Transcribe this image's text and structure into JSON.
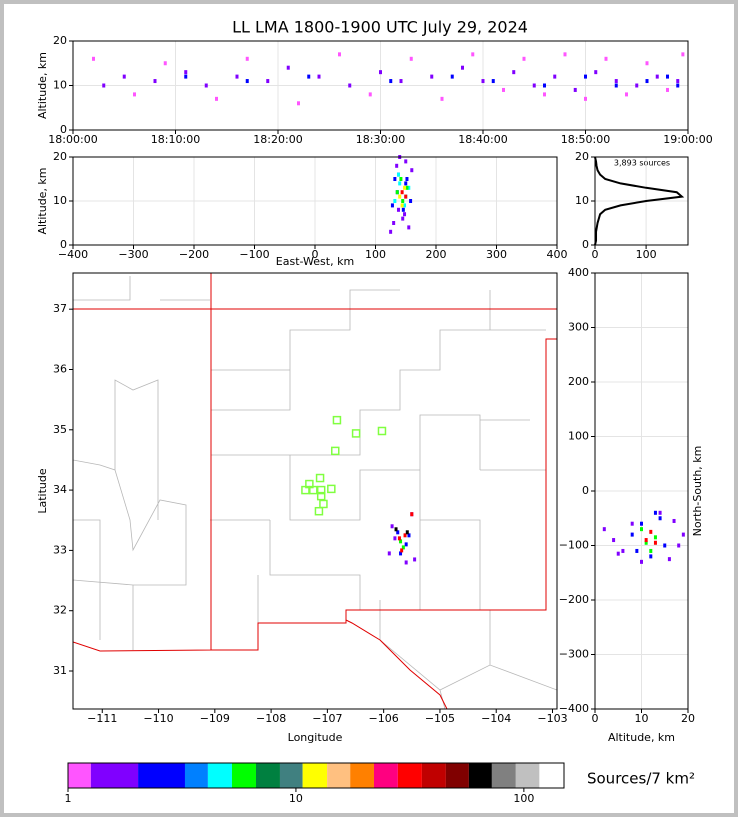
{
  "chart_data": [
    {
      "type": "scatter",
      "title": "LL LMA 1800-1900 UTC July 29, 2024",
      "ylabel": "Altitude, km",
      "xlim": [
        0,
        60
      ],
      "xticks": [
        {
          "value": 0,
          "label": "18:00:00"
        },
        {
          "value": 10,
          "label": "18:10:00"
        },
        {
          "value": 20,
          "label": "18:20:00"
        },
        {
          "value": 30,
          "label": "18:30:00"
        },
        {
          "value": 40,
          "label": "18:40:00"
        },
        {
          "value": 50,
          "label": "18:50:00"
        },
        {
          "value": 60,
          "label": "19:00:00"
        }
      ],
      "ylim": [
        0,
        20
      ],
      "yticks": [
        0,
        10,
        20
      ],
      "grid": true,
      "series": [
        {
          "color": "#8000ff",
          "x": [
            3,
            5,
            8,
            11,
            13,
            16,
            19,
            21,
            24,
            27,
            30,
            32,
            35,
            38,
            40,
            43,
            45,
            47,
            49,
            51,
            53,
            55,
            57,
            59
          ],
          "y": [
            10,
            12,
            11,
            13,
            10,
            12,
            11,
            14,
            12,
            10,
            13,
            11,
            12,
            14,
            11,
            13,
            10,
            12,
            9,
            13,
            11,
            10,
            12,
            11
          ]
        },
        {
          "color": "#ff55ff",
          "x": [
            2,
            6,
            9,
            14,
            17,
            22,
            26,
            29,
            33,
            36,
            39,
            42,
            44,
            46,
            48,
            50,
            52,
            54,
            56,
            58,
            59.5
          ],
          "y": [
            16,
            8,
            15,
            7,
            16,
            6,
            17,
            8,
            16,
            7,
            17,
            9,
            16,
            8,
            17,
            7,
            16,
            8,
            15,
            9,
            17
          ]
        },
        {
          "color": "#0000ff",
          "x": [
            11,
            17,
            23,
            31,
            37,
            41,
            46,
            50,
            53,
            56,
            58,
            59
          ],
          "y": [
            12,
            11,
            12,
            11,
            12,
            11,
            10,
            12,
            10,
            11,
            12,
            10
          ]
        }
      ]
    },
    {
      "type": "scatter",
      "xlabel": "East-West, km",
      "ylabel": "Altitude, km",
      "xlim": [
        -400,
        400
      ],
      "xticks": [
        {
          "value": -400,
          "label": "−400"
        },
        {
          "value": -300,
          "label": "−300"
        },
        {
          "value": -200,
          "label": "−200"
        },
        {
          "value": -100,
          "label": "−100"
        },
        0,
        100,
        200,
        300,
        400
      ],
      "ylim": [
        0,
        20
      ],
      "yticks": [
        0,
        10,
        20
      ],
      "grid": true,
      "series": [
        {
          "color": "#8000ff",
          "x": [
            125,
            130,
            135,
            140,
            145,
            150,
            155,
            160,
            138,
            148
          ],
          "y": [
            3,
            5,
            18,
            20,
            6,
            19,
            4,
            17,
            8,
            7
          ]
        },
        {
          "color": "#0000ff",
          "x": [
            128,
            132,
            138,
            146,
            152,
            158,
            136,
            150
          ],
          "y": [
            9,
            15,
            16,
            8,
            15,
            10,
            12,
            14
          ]
        },
        {
          "color": "#00ffff",
          "x": [
            132,
            140,
            148,
            155,
            138,
            150
          ],
          "y": [
            10,
            14,
            9,
            13,
            16,
            11
          ]
        },
        {
          "color": "#00ff00",
          "x": [
            136,
            145,
            152,
            142
          ],
          "y": [
            12,
            10,
            13,
            15
          ]
        },
        {
          "color": "#ffff00",
          "x": [
            140,
            148,
            144
          ],
          "y": [
            11,
            13,
            9
          ]
        },
        {
          "color": "#ff0000",
          "x": [
            144,
            150
          ],
          "y": [
            12,
            11
          ]
        }
      ]
    },
    {
      "type": "line",
      "annotation": "3,893 sources",
      "xlim": [
        0,
        182
      ],
      "xticks": [
        0,
        100
      ],
      "ylim": [
        0,
        20
      ],
      "yticks": [
        0,
        10,
        20
      ],
      "grid": true,
      "series": [
        {
          "color": "#000000",
          "x": [
            0,
            2,
            2,
            5,
            10,
            20,
            50,
            100,
            170,
            160,
            100,
            50,
            20,
            10,
            5,
            3,
            2,
            0
          ],
          "y": [
            0,
            1,
            3,
            5,
            7,
            8,
            9,
            10,
            11,
            12,
            13,
            14,
            15,
            16,
            17,
            18,
            19,
            20
          ]
        }
      ]
    },
    {
      "type": "scatter",
      "xlabel": "Longitude",
      "ylabel": "Latitude",
      "xlim": [
        -111.52,
        -102.92
      ],
      "xticks": [
        {
          "value": -111,
          "label": "−111"
        },
        {
          "value": -110,
          "label": "−110"
        },
        {
          "value": -109,
          "label": "−109"
        },
        {
          "value": -108,
          "label": "−108"
        },
        {
          "value": -107,
          "label": "−107"
        },
        {
          "value": -106,
          "label": "−106"
        },
        {
          "value": -105,
          "label": "−105"
        },
        {
          "value": -104,
          "label": "−104"
        },
        {
          "value": -103,
          "label": "−103"
        }
      ],
      "ylim": [
        30.37,
        37.6
      ],
      "yticks": [
        31,
        32,
        33,
        34,
        35,
        36,
        37
      ],
      "grid": false,
      "series": [
        {
          "color": "#80ff40",
          "marker": "square",
          "x": [
            -106.83,
            -106.49,
            -106.03,
            -106.86,
            -107.13,
            -107.32,
            -107.39,
            -107.25,
            -107.11,
            -106.93,
            -107.11,
            -107.07,
            -107.15
          ],
          "y": [
            35.16,
            34.94,
            34.98,
            34.65,
            34.2,
            34.1,
            34.0,
            34.0,
            34.0,
            34.02,
            33.9,
            33.77,
            33.65
          ]
        },
        {
          "color": "#8000ff",
          "x": [
            -105.9,
            -105.85,
            -105.5,
            -105.45,
            -105.6,
            -105.8
          ],
          "y": [
            32.95,
            33.4,
            33.6,
            32.85,
            32.8,
            33.2
          ]
        },
        {
          "color": "#0000ff",
          "x": [
            -105.75,
            -105.6,
            -105.55,
            -105.7
          ],
          "y": [
            33.3,
            33.1,
            33.25,
            32.95
          ]
        },
        {
          "color": "#00ff00",
          "x": [
            -105.7,
            -105.65
          ],
          "y": [
            33.15,
            33.05
          ]
        },
        {
          "color": "#ff0000",
          "x": [
            -105.72,
            -105.62,
            -105.5,
            -105.68
          ],
          "y": [
            33.2,
            33.25,
            33.6,
            33.0
          ]
        },
        {
          "color": "#000000",
          "x": [
            -105.78,
            -105.58
          ],
          "y": [
            33.35,
            33.3
          ]
        }
      ]
    },
    {
      "type": "scatter",
      "xlabel": "Altitude, km",
      "ylabel": "North-South, km",
      "ylabel_side": "right",
      "xlim": [
        0,
        20
      ],
      "xticks": [
        0,
        10,
        20
      ],
      "ylim": [
        -400,
        400
      ],
      "yticks": [
        {
          "value": -400,
          "label": "−400"
        },
        {
          "value": -300,
          "label": "−300"
        },
        {
          "value": -200,
          "label": "−200"
        },
        {
          "value": -100,
          "label": "−100"
        },
        0,
        100,
        200,
        300,
        400
      ],
      "grid": true,
      "series": [
        {
          "color": "#8000ff",
          "x": [
            2,
            4,
            6,
            8,
            10,
            14,
            16,
            18,
            19,
            5,
            17
          ],
          "y": [
            -70,
            -90,
            -110,
            -60,
            -130,
            -40,
            -125,
            -100,
            -80,
            -115,
            -55
          ]
        },
        {
          "color": "#0000ff",
          "x": [
            8,
            10,
            12,
            14,
            15,
            9,
            13
          ],
          "y": [
            -80,
            -60,
            -120,
            -50,
            -100,
            -110,
            -40
          ]
        },
        {
          "color": "#00ff00",
          "x": [
            10,
            11,
            13,
            12
          ],
          "y": [
            -70,
            -95,
            -85,
            -110
          ]
        },
        {
          "color": "#ff0000",
          "x": [
            11,
            12,
            13
          ],
          "y": [
            -90,
            -75,
            -95
          ]
        }
      ]
    },
    {
      "type": "colorbar",
      "label": "Sources/7 km²",
      "scale": "log",
      "bounds": [
        1,
        1.26,
        2.03,
        3.26,
        4.11,
        5.24,
        6.68,
        8.51,
        10.7,
        13.7,
        17.3,
        22,
        28,
        35.7,
        45.5,
        57.4,
        72.4,
        92.2,
        117,
        150
      ],
      "colors": [
        "#ff55ff",
        "#8000ff",
        "#0000ff",
        "#0080ff",
        "#00ffff",
        "#00ff00",
        "#008040",
        "#408080",
        "#ffff00",
        "#ffc080",
        "#ff8000",
        "#ff0080",
        "#ff0000",
        "#c00000",
        "#800000",
        "#000000",
        "#808080",
        "#c0c0c0",
        "#ffffff"
      ],
      "ticks": [
        1,
        10,
        100
      ]
    }
  ]
}
